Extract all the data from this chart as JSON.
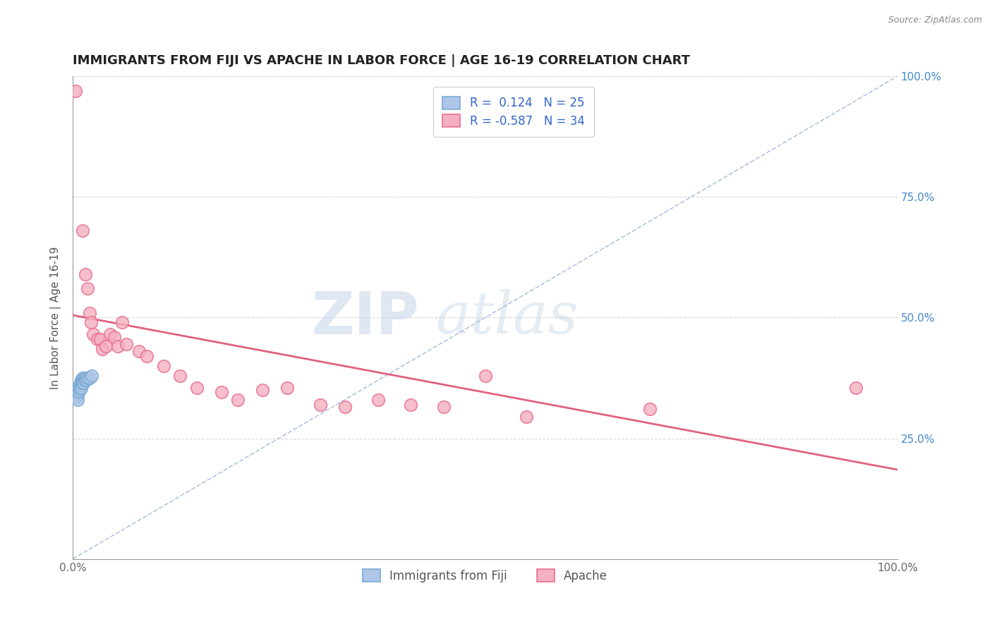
{
  "title": "IMMIGRANTS FROM FIJI VS APACHE IN LABOR FORCE | AGE 16-19 CORRELATION CHART",
  "source": "Source: ZipAtlas.com",
  "ylabel": "In Labor Force | Age 16-19",
  "xlim": [
    0.0,
    1.0
  ],
  "ylim": [
    0.0,
    1.0
  ],
  "x_tick_labels": [
    "0.0%",
    "100.0%"
  ],
  "y_tick_labels_right": [
    "25.0%",
    "50.0%",
    "75.0%",
    "100.0%"
  ],
  "y_tick_positions": [
    0.25,
    0.5,
    0.75,
    1.0
  ],
  "fiji_R": 0.124,
  "fiji_N": 25,
  "apache_R": -0.587,
  "apache_N": 34,
  "fiji_color": "#aec6e8",
  "apache_color": "#f4afc0",
  "fiji_edge_color": "#7aaad4",
  "apache_edge_color": "#e87090",
  "regression_fiji_color": "#4477bb",
  "regression_apache_color": "#e05878",
  "diagonal_color": "#aabcdd",
  "watermark_zip_color": "#c5d5e8",
  "watermark_atlas_color": "#c5d5e8",
  "background_color": "#ffffff",
  "grid_color": "#cccccc",
  "fiji_points_x": [
    0.005,
    0.006,
    0.006,
    0.007,
    0.007,
    0.008,
    0.008,
    0.009,
    0.009,
    0.009,
    0.01,
    0.01,
    0.01,
    0.011,
    0.011,
    0.012,
    0.012,
    0.013,
    0.013,
    0.014,
    0.015,
    0.016,
    0.018,
    0.02,
    0.023
  ],
  "fiji_points_y": [
    0.335,
    0.34,
    0.33,
    0.355,
    0.345,
    0.36,
    0.35,
    0.365,
    0.355,
    0.36,
    0.37,
    0.36,
    0.355,
    0.37,
    0.365,
    0.375,
    0.368,
    0.372,
    0.365,
    0.37,
    0.375,
    0.37,
    0.375,
    0.375,
    0.38
  ],
  "apache_points_x": [
    0.003,
    0.012,
    0.015,
    0.018,
    0.02,
    0.022,
    0.025,
    0.03,
    0.033,
    0.036,
    0.04,
    0.045,
    0.05,
    0.055,
    0.06,
    0.065,
    0.08,
    0.09,
    0.11,
    0.13,
    0.15,
    0.18,
    0.2,
    0.23,
    0.26,
    0.3,
    0.33,
    0.37,
    0.41,
    0.45,
    0.5,
    0.55,
    0.7,
    0.95
  ],
  "apache_points_y": [
    0.97,
    0.68,
    0.59,
    0.56,
    0.51,
    0.49,
    0.465,
    0.455,
    0.455,
    0.435,
    0.44,
    0.465,
    0.46,
    0.44,
    0.49,
    0.445,
    0.43,
    0.42,
    0.4,
    0.38,
    0.355,
    0.345,
    0.33,
    0.35,
    0.355,
    0.32,
    0.315,
    0.33,
    0.32,
    0.315,
    0.38,
    0.295,
    0.31,
    0.355
  ],
  "apache_line_x0": 0.0,
  "apache_line_y0": 0.505,
  "apache_line_x1": 1.0,
  "apache_line_y1": 0.185,
  "fiji_line_x0": 0.0,
  "fiji_line_y0": 0.355,
  "fiji_line_x1": 0.025,
  "fiji_line_y1": 0.382,
  "title_fontsize": 13,
  "axis_label_fontsize": 11,
  "tick_fontsize": 11,
  "legend_fontsize": 12
}
